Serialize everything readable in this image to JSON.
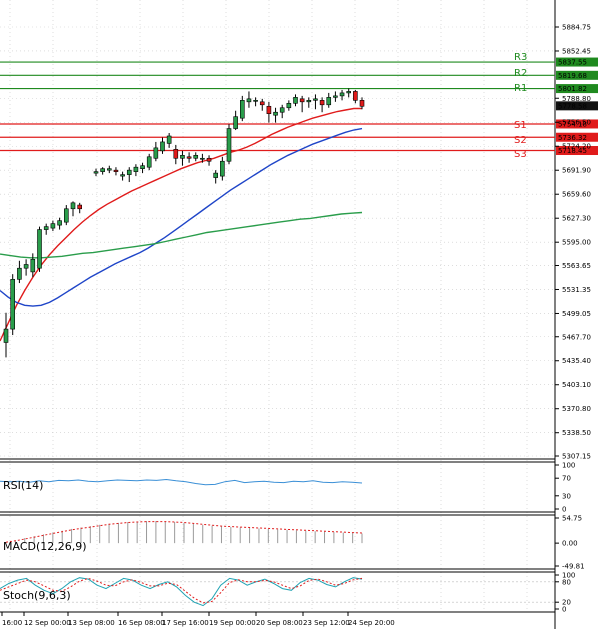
{
  "chart_data": [
    {
      "type": "candlestick",
      "panel": "price",
      "ylim": [
        5307.15,
        5917.05
      ],
      "y_ticks": [
        "5884.75",
        "5852.45",
        "5788.80",
        "5756.50",
        "5724.20",
        "5691.90",
        "5659.60",
        "5627.30",
        "5595.00",
        "5563.65",
        "5531.35",
        "5499.05",
        "5467.70",
        "5435.40",
        "5403.10",
        "5370.80",
        "5338.50",
        "5307.15"
      ],
      "x_labels": [
        "16:00",
        "12 Sep 00:00",
        "13 Sep 08:00",
        "16 Sep 08:00",
        "17 Sep 16:00",
        "19 Sep 00:00",
        "20 Sep 08:00",
        "23 Sep 12:00",
        "24 Sep 20:00"
      ],
      "current_price": "5778.58",
      "levels": [
        {
          "name": "R3",
          "value": "5837.55",
          "color": "#1f8a1f"
        },
        {
          "name": "R2",
          "value": "5819.68",
          "color": "#1f8a1f"
        },
        {
          "name": "R1",
          "value": "5801.82",
          "color": "#1f8a1f"
        },
        {
          "name": "S1",
          "value": "5754.18",
          "color": "#e01b1b"
        },
        {
          "name": "S2",
          "value": "5736.32",
          "color": "#e01b1b"
        },
        {
          "name": "S3",
          "value": "5718.45",
          "color": "#e01b1b"
        }
      ],
      "candles": [
        [
          5460,
          5478,
          5440,
          5500
        ],
        [
          5478,
          5545,
          5470,
          5552
        ],
        [
          5545,
          5560,
          5540,
          5570
        ],
        [
          5560,
          5565,
          5550,
          5572
        ],
        [
          5555,
          5572,
          5548,
          5580
        ],
        [
          5560,
          5612,
          5555,
          5616
        ],
        [
          5612,
          5616,
          5605,
          5620
        ],
        [
          5614,
          5620,
          5610,
          5624
        ],
        [
          5618,
          5624,
          5612,
          5628
        ],
        [
          5622,
          5640,
          5618,
          5645
        ],
        [
          5640,
          5648,
          5630,
          5650
        ],
        [
          5645,
          5640,
          5634,
          5648
        ],
        [
          5688,
          5690,
          5684,
          5694
        ],
        [
          5690,
          5694,
          5686,
          5696
        ],
        [
          5692,
          5694,
          5688,
          5698
        ],
        [
          5692,
          5690,
          5685,
          5696
        ],
        [
          5684,
          5686,
          5678,
          5690
        ],
        [
          5686,
          5692,
          5676,
          5696
        ],
        [
          5690,
          5696,
          5684,
          5700
        ],
        [
          5694,
          5698,
          5688,
          5702
        ],
        [
          5696,
          5710,
          5692,
          5714
        ],
        [
          5708,
          5722,
          5704,
          5730
        ],
        [
          5718,
          5730,
          5714,
          5736
        ],
        [
          5728,
          5738,
          5722,
          5742
        ],
        [
          5720,
          5708,
          5700,
          5726
        ],
        [
          5708,
          5712,
          5698,
          5718
        ],
        [
          5710,
          5708,
          5702,
          5716
        ],
        [
          5708,
          5712,
          5704,
          5716
        ],
        [
          5708,
          5708,
          5702,
          5714
        ],
        [
          5708,
          5704,
          5698,
          5712
        ],
        [
          5682,
          5688,
          5674,
          5692
        ],
        [
          5684,
          5704,
          5678,
          5710
        ],
        [
          5704,
          5748,
          5700,
          5754
        ],
        [
          5748,
          5764,
          5746,
          5772
        ],
        [
          5762,
          5786,
          5758,
          5792
        ],
        [
          5784,
          5788,
          5776,
          5798
        ],
        [
          5786,
          5786,
          5778,
          5790
        ],
        [
          5784,
          5780,
          5772,
          5788
        ],
        [
          5778,
          5768,
          5756,
          5784
        ],
        [
          5766,
          5770,
          5756,
          5776
        ],
        [
          5770,
          5776,
          5762,
          5780
        ],
        [
          5776,
          5782,
          5772,
          5786
        ],
        [
          5782,
          5790,
          5778,
          5794
        ],
        [
          5788,
          5784,
          5770,
          5792
        ],
        [
          5784,
          5786,
          5776,
          5790
        ],
        [
          5786,
          5788,
          5774,
          5794
        ],
        [
          5786,
          5780,
          5770,
          5790
        ],
        [
          5780,
          5790,
          5776,
          5796
        ],
        [
          5790,
          5792,
          5784,
          5798
        ],
        [
          5792,
          5796,
          5786,
          5800
        ],
        [
          5796,
          5798,
          5790,
          5802
        ],
        [
          5798,
          5786,
          5782,
          5800
        ],
        [
          5786,
          5778,
          5774,
          5790
        ]
      ],
      "moving_averages": [
        {
          "color": "#e01b1b",
          "values": [
            5462,
            5486,
            5510,
            5530,
            5548,
            5564,
            5578,
            5590,
            5601,
            5612,
            5622,
            5631,
            5639,
            5646,
            5652,
            5658,
            5664,
            5669,
            5674,
            5679,
            5684,
            5689,
            5694,
            5698,
            5702,
            5705,
            5708,
            5712,
            5716,
            5719,
            5723,
            5728,
            5734,
            5740,
            5745,
            5750,
            5754,
            5758,
            5762,
            5765,
            5768,
            5771,
            5773,
            5775,
            5775
          ]
        },
        {
          "color": "#1f45c8",
          "values": [
            5530,
            5521,
            5514,
            5510,
            5509,
            5510,
            5514,
            5520,
            5527,
            5534,
            5541,
            5548,
            5554,
            5560,
            5566,
            5571,
            5576,
            5581,
            5587,
            5594,
            5601,
            5609,
            5617,
            5625,
            5633,
            5641,
            5649,
            5657,
            5665,
            5672,
            5679,
            5686,
            5693,
            5700,
            5706,
            5712,
            5717,
            5722,
            5727,
            5731,
            5735,
            5739,
            5743,
            5746,
            5748
          ]
        },
        {
          "color": "#2a9d4b",
          "values": [
            5579,
            5577,
            5575,
            5574,
            5574,
            5575,
            5576,
            5578,
            5580,
            5581,
            5583,
            5585,
            5587,
            5589,
            5591,
            5593,
            5596,
            5599,
            5602,
            5605,
            5608,
            5610,
            5612,
            5614,
            5616,
            5618,
            5620,
            5622,
            5624,
            5626,
            5627,
            5629,
            5631,
            5633,
            5634,
            5635
          ]
        }
      ]
    },
    {
      "type": "line",
      "panel": "rsi",
      "title": "RSI(14)",
      "ylim": [
        0,
        100
      ],
      "y_ticks": [
        "100",
        "70",
        "30",
        "0"
      ],
      "values": [
        63,
        62,
        63,
        61,
        64,
        62,
        65,
        64,
        66,
        63,
        62,
        64,
        66,
        65,
        64,
        66,
        65,
        67,
        64,
        62,
        58,
        55,
        56,
        62,
        65,
        60,
        62,
        63,
        61,
        60,
        63,
        62,
        64,
        61,
        60,
        62,
        61,
        59
      ]
    },
    {
      "type": "bar",
      "panel": "macd",
      "title": "MACD(12,26,9)",
      "ylim": [
        -49.81,
        54.75
      ],
      "y_ticks": [
        "54.75",
        "0.00",
        "-49.81"
      ],
      "histogram": [
        2,
        6,
        11,
        15,
        19,
        23,
        27,
        31,
        34,
        37,
        40,
        42,
        44,
        46,
        47,
        48,
        48,
        47,
        46,
        44,
        42,
        40,
        38,
        36,
        35,
        34,
        33,
        32,
        31,
        30,
        29,
        28,
        27,
        26,
        25,
        24,
        23,
        22,
        21
      ],
      "signal": [
        2,
        5,
        9,
        13,
        17,
        21,
        25,
        29,
        32,
        35,
        38,
        41,
        43,
        45,
        46,
        47,
        47,
        47,
        46,
        45,
        43,
        41,
        39,
        37,
        36,
        35,
        34,
        33,
        32,
        31,
        30,
        29,
        28,
        27,
        26,
        25,
        24,
        23,
        22
      ]
    },
    {
      "type": "line",
      "panel": "stoch",
      "title": "Stoch(9,6,3)",
      "ylim": [
        0,
        100
      ],
      "y_ticks": [
        "100",
        "80",
        "20",
        "0"
      ],
      "k": [
        60,
        75,
        85,
        90,
        70,
        55,
        45,
        60,
        80,
        92,
        88,
        70,
        60,
        75,
        90,
        85,
        70,
        60,
        72,
        80,
        65,
        40,
        20,
        10,
        30,
        70,
        90,
        85,
        70,
        80,
        88,
        75,
        60,
        55,
        78,
        90,
        85,
        72,
        65,
        80,
        92,
        88
      ],
      "d": [
        55,
        65,
        75,
        85,
        80,
        68,
        55,
        52,
        65,
        82,
        90,
        82,
        70,
        68,
        80,
        86,
        78,
        68,
        68,
        76,
        72,
        52,
        32,
        18,
        22,
        48,
        78,
        86,
        80,
        80,
        84,
        80,
        70,
        60,
        68,
        84,
        88,
        80,
        70,
        75,
        86,
        90
      ]
    }
  ]
}
